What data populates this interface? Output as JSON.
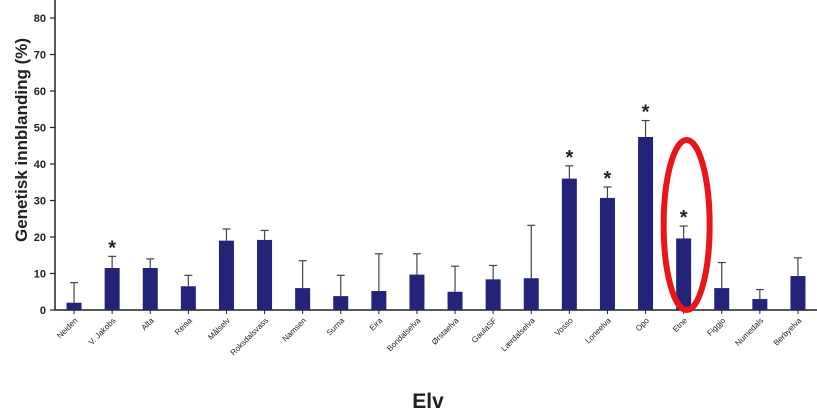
{
  "chart_data": {
    "type": "bar",
    "title": "",
    "ylabel": "Genetisk innblanding (%)",
    "xlabel": "Elv",
    "ylim": [
      0,
      80
    ],
    "yticks": [
      "0",
      "10",
      "20",
      "30",
      "40",
      "50",
      "60",
      "70",
      "80"
    ],
    "grid": false,
    "bar_color": "#23237a",
    "highlight_color": "#e8161b",
    "categories": [
      "Neiden",
      "V. Jakobs",
      "Alta",
      "Reisa",
      "Målselv",
      "Roksdalsvass",
      "Namsen",
      "Surna",
      "Eira",
      "Bondalselva",
      "Ørstaelva",
      "GaulaSF",
      "Lærdalselva",
      "Vosso",
      "Loneelva",
      "Opo",
      "Etne",
      "Figgjo",
      "Numedals",
      "Berbyelva"
    ],
    "values": [
      2,
      11.5,
      11.5,
      6.5,
      19,
      19.2,
      6,
      3.8,
      5.2,
      9.7,
      5,
      8.4,
      8.7,
      36,
      30.7,
      47.4,
      19.6,
      6,
      3,
      9.3
    ],
    "error_upper": [
      5.5,
      3.2,
      2.5,
      3,
      3.2,
      2.6,
      7.5,
      5.7,
      10.2,
      5.7,
      7,
      3.8,
      14.5,
      3.5,
      3,
      4.5,
      3.4,
      7,
      2.6,
      5
    ],
    "significance_marker": "*",
    "significant": [
      "V. Jakobs",
      "Vosso",
      "Loneelva",
      "Opo",
      "Etne"
    ],
    "highlighted": "Etne"
  }
}
